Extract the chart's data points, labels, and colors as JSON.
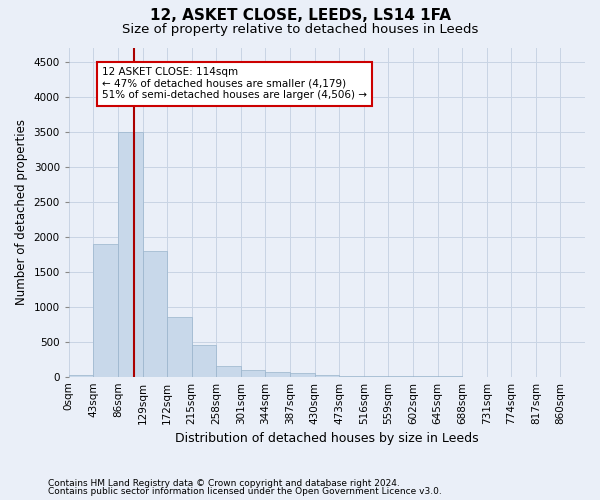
{
  "title": "12, ASKET CLOSE, LEEDS, LS14 1FA",
  "subtitle": "Size of property relative to detached houses in Leeds",
  "xlabel": "Distribution of detached houses by size in Leeds",
  "ylabel": "Number of detached properties",
  "footnote1": "Contains HM Land Registry data © Crown copyright and database right 2024.",
  "footnote2": "Contains public sector information licensed under the Open Government Licence v3.0.",
  "bar_labels": [
    "0sqm",
    "43sqm",
    "86sqm",
    "129sqm",
    "172sqm",
    "215sqm",
    "258sqm",
    "301sqm",
    "344sqm",
    "387sqm",
    "430sqm",
    "473sqm",
    "516sqm",
    "559sqm",
    "602sqm",
    "645sqm",
    "688sqm",
    "731sqm",
    "774sqm",
    "817sqm",
    "860sqm"
  ],
  "bar_values": [
    30,
    1900,
    3500,
    1800,
    850,
    450,
    150,
    100,
    70,
    50,
    30,
    5,
    5,
    5,
    3,
    3,
    2,
    2,
    1,
    1,
    0
  ],
  "bar_color": "#c8d8ea",
  "bar_edge_color": "#9ab4cc",
  "grid_color": "#c8d4e4",
  "bg_color": "#eaeff8",
  "vline_color": "#aa0000",
  "annotation_text": "12 ASKET CLOSE: 114sqm\n← 47% of detached houses are smaller (4,179)\n51% of semi-detached houses are larger (4,506) →",
  "annotation_box_color": "#ffffff",
  "annotation_box_edge": "#cc0000",
  "ylim": [
    0,
    4700
  ],
  "yticks": [
    0,
    500,
    1000,
    1500,
    2000,
    2500,
    3000,
    3500,
    4000,
    4500
  ],
  "title_fontsize": 11,
  "subtitle_fontsize": 9.5,
  "xlabel_fontsize": 9,
  "ylabel_fontsize": 8.5,
  "tick_fontsize": 7.5,
  "footnote_fontsize": 6.5,
  "bin_width": 43,
  "property_size": 114
}
